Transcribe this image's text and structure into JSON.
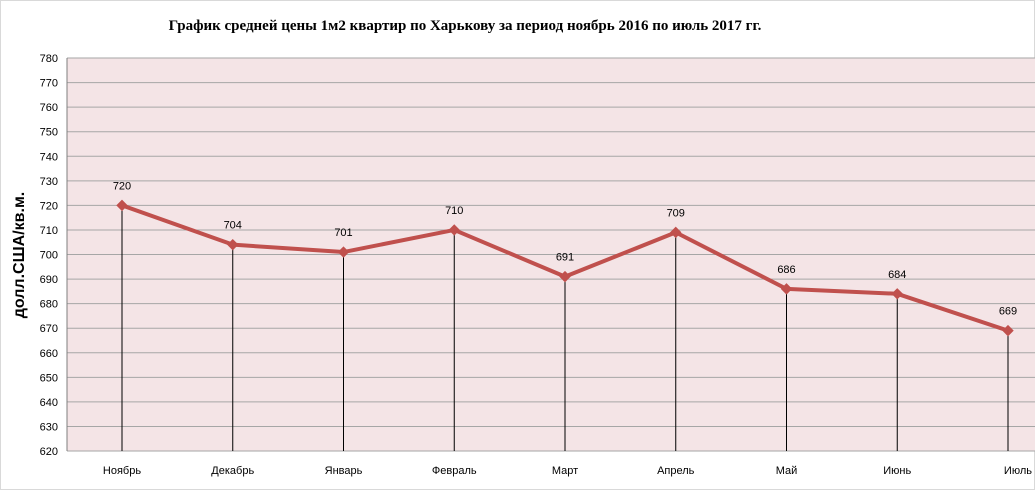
{
  "chart_data": {
    "type": "line",
    "title": "График средней цены 1м2 квартир по Харькову за период ноябрь 2016 по июль 2017 гг.",
    "xlabel": "",
    "ylabel": "долл.США/кв.м.",
    "categories": [
      "Ноябрь",
      "Декабрь",
      "Январь",
      "Февраль",
      "Март",
      "Апрель",
      "Май",
      "Июнь",
      "Июль"
    ],
    "series": [
      {
        "values": [
          720,
          704,
          701,
          710,
          691,
          709,
          686,
          684,
          669
        ]
      }
    ],
    "ylim": [
      620,
      780
    ],
    "ytick_step": 10,
    "grid": true,
    "drop_lines": true,
    "data_labels": true,
    "colors": {
      "plot_background": "#f4e4e6",
      "gridline": "#a6a6a6",
      "series_line": "#c0504d",
      "drop_line": "#000000"
    }
  }
}
